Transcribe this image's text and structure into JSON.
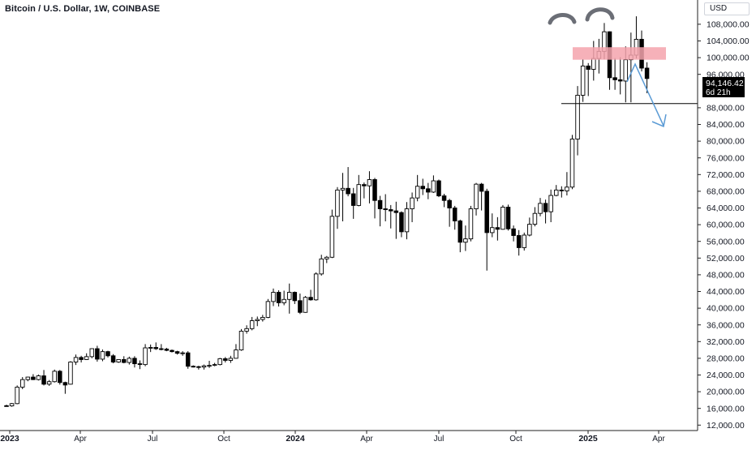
{
  "header": {
    "symbol_title": "Bitcoin / U.S. Dollar, 1W, COINBASE",
    "currency_label": "USD"
  },
  "price_badge": {
    "price": "94,146.42",
    "countdown": "6d 21h"
  },
  "colors": {
    "bull_fill": "#ffffff",
    "bear_fill": "#000000",
    "candle_outline": "#000000",
    "resistance_zone": "#f5a3ad",
    "projection_arrow": "#5b9bd5",
    "head_shoulders_mark": "#6b6e76",
    "support_line": "#000000",
    "axis_text": "#131722"
  },
  "chart_data": {
    "type": "candlestick",
    "title": "Bitcoin / U.S. Dollar, 1W, COINBASE",
    "y_axis": {
      "position": "right",
      "ticks": [
        "108,000.00",
        "104,000.00",
        "100,000.00",
        "96,000.00",
        "88,000.00",
        "84,000.00",
        "80,000.00",
        "76,000.00",
        "72,000.00",
        "68,000.00",
        "64,000.00",
        "60,000.00",
        "56,000.00",
        "52,000.00",
        "48,000.00",
        "44,000.00",
        "40,000.00",
        "36,000.00",
        "32,000.00",
        "28,000.00",
        "24,000.00",
        "20,000.00",
        "16,000.00",
        "12,000.00"
      ],
      "ylim": [
        11000,
        111000
      ],
      "scale": "linear"
    },
    "x_axis": {
      "ticks": [
        "2023",
        "Apr",
        "Jul",
        "Oct",
        "2024",
        "Apr",
        "Jul",
        "Oct",
        "2025",
        "Apr"
      ],
      "bold_ticks": [
        "2023",
        "2024",
        "2025"
      ]
    },
    "grid": false,
    "annotations": [
      "head-and-shoulders caps over peaks",
      "resistance zone ~99,500-102,500",
      "neckline support ~89,000",
      "projected downward path"
    ],
    "candles_ohlc": [
      [
        16650,
        16900,
        16500,
        16600
      ],
      [
        16600,
        17300,
        16400,
        17150
      ],
      [
        17150,
        21500,
        17000,
        21100
      ],
      [
        21100,
        23500,
        20600,
        22900
      ],
      [
        22900,
        23600,
        22500,
        23500
      ],
      [
        23500,
        24200,
        22800,
        22900
      ],
      [
        22900,
        24100,
        22700,
        23800
      ],
      [
        23800,
        25200,
        21500,
        21800
      ],
      [
        21800,
        22800,
        21400,
        22400
      ],
      [
        22400,
        25300,
        22200,
        24900
      ],
      [
        24900,
        25200,
        21700,
        22200
      ],
      [
        22200,
        22400,
        19500,
        21600
      ],
      [
        21800,
        27300,
        21700,
        27100
      ],
      [
        27100,
        28900,
        26400,
        28200
      ],
      [
        28200,
        28600,
        27000,
        27700
      ],
      [
        27700,
        29200,
        27600,
        28400
      ],
      [
        28400,
        30400,
        28000,
        30300
      ],
      [
        30300,
        31000,
        27200,
        27800
      ],
      [
        27800,
        30100,
        27300,
        29600
      ],
      [
        29600,
        29800,
        28200,
        28600
      ],
      [
        28600,
        29000,
        26800,
        27100
      ],
      [
        27100,
        27800,
        26900,
        27700
      ],
      [
        27700,
        28500,
        26800,
        27000
      ],
      [
        27000,
        28400,
        26500,
        28000
      ],
      [
        28000,
        28500,
        25800,
        26700
      ],
      [
        26700,
        27500,
        25400,
        26500
      ],
      [
        26500,
        31400,
        26100,
        30500
      ],
      [
        30500,
        31300,
        29500,
        30600
      ],
      [
        30600,
        31800,
        30000,
        30300
      ],
      [
        30300,
        31400,
        29900,
        30200
      ],
      [
        30200,
        30500,
        29700,
        29900
      ],
      [
        29900,
        30100,
        29400,
        29600
      ],
      [
        29600,
        29800,
        28900,
        29200
      ],
      [
        29200,
        29700,
        28600,
        29300
      ],
      [
        29300,
        29700,
        25500,
        26100
      ],
      [
        26100,
        26300,
        25800,
        26000
      ],
      [
        26000,
        26200,
        25300,
        25900
      ],
      [
        25900,
        26500,
        25300,
        26200
      ],
      [
        26200,
        27400,
        25700,
        26300
      ],
      [
        26300,
        26900,
        26100,
        26500
      ],
      [
        26500,
        28100,
        26300,
        27900
      ],
      [
        27900,
        28300,
        27000,
        27500
      ],
      [
        27500,
        28600,
        26900,
        28000
      ],
      [
        28000,
        31400,
        27900,
        30000
      ],
      [
        30000,
        35000,
        29800,
        34500
      ],
      [
        34500,
        35900,
        33900,
        35100
      ],
      [
        35100,
        37900,
        34700,
        37000
      ],
      [
        37000,
        38000,
        35700,
        37300
      ],
      [
        37300,
        38400,
        36800,
        37800
      ],
      [
        37800,
        42200,
        37600,
        41600
      ],
      [
        41600,
        44700,
        40500,
        43800
      ],
      [
        43800,
        44300,
        40400,
        41300
      ],
      [
        41300,
        44200,
        40700,
        42100
      ],
      [
        42100,
        45900,
        38700,
        43800
      ],
      [
        43800,
        44000,
        41000,
        41800
      ],
      [
        41800,
        43500,
        38600,
        39000
      ],
      [
        39000,
        42900,
        38900,
        42600
      ],
      [
        42600,
        44400,
        41800,
        42000
      ],
      [
        42000,
        48600,
        41800,
        48200
      ],
      [
        48200,
        52800,
        47800,
        51800
      ],
      [
        51800,
        52500,
        50800,
        52200
      ],
      [
        52200,
        63600,
        52000,
        62000
      ],
      [
        62000,
        69000,
        59000,
        68300
      ],
      [
        68300,
        72400,
        60800,
        68700
      ],
      [
        68700,
        73800,
        66800,
        67400
      ],
      [
        67400,
        68800,
        61400,
        64600
      ],
      [
        64600,
        71900,
        64400,
        69600
      ],
      [
        69600,
        70100,
        66300,
        69300
      ],
      [
        69300,
        72800,
        65100,
        70800
      ],
      [
        70800,
        71200,
        61500,
        65800
      ],
      [
        65800,
        66900,
        59600,
        63800
      ],
      [
        63800,
        67300,
        60800,
        63600
      ],
      [
        63600,
        64700,
        59100,
        63300
      ],
      [
        63300,
        65500,
        56600,
        62900
      ],
      [
        62900,
        63200,
        57000,
        58300
      ],
      [
        58300,
        65400,
        56500,
        63800
      ],
      [
        63800,
        67700,
        60600,
        66400
      ],
      [
        66400,
        71900,
        65600,
        69200
      ],
      [
        69200,
        71000,
        67100,
        68600
      ],
      [
        68600,
        70000,
        66100,
        67800
      ],
      [
        67800,
        71800,
        67600,
        70500
      ],
      [
        70500,
        70800,
        66600,
        66900
      ],
      [
        66900,
        67400,
        64200,
        65800
      ],
      [
        65800,
        66200,
        59500,
        64000
      ],
      [
        64000,
        64500,
        58800,
        60900
      ],
      [
        60900,
        61200,
        53400,
        55800
      ],
      [
        55800,
        59800,
        53700,
        56600
      ],
      [
        56600,
        64500,
        56000,
        63800
      ],
      [
        63800,
        70000,
        62200,
        69700
      ],
      [
        69700,
        70000,
        63400,
        68000
      ],
      [
        68000,
        68600,
        49000,
        58100
      ],
      [
        58100,
        62700,
        57000,
        59300
      ],
      [
        59300,
        61800,
        56200,
        58900
      ],
      [
        58900,
        64700,
        58800,
        64200
      ],
      [
        64200,
        64800,
        58600,
        59000
      ],
      [
        59000,
        59800,
        56000,
        57400
      ],
      [
        57400,
        58700,
        52600,
        54500
      ],
      [
        54500,
        58100,
        53800,
        57500
      ],
      [
        57500,
        61700,
        57200,
        60100
      ],
      [
        60100,
        64200,
        59600,
        62700
      ],
      [
        62700,
        66400,
        62000,
        65100
      ],
      [
        65100,
        66000,
        60300,
        63100
      ],
      [
        63100,
        68400,
        60600,
        67000
      ],
      [
        67000,
        69500,
        66800,
        68300
      ],
      [
        68300,
        69200,
        66500,
        68100
      ],
      [
        68100,
        72600,
        67000,
        69000
      ],
      [
        69000,
        81500,
        68500,
        80500
      ],
      [
        80500,
        93200,
        76600,
        91000
      ],
      [
        91000,
        99600,
        89400,
        98000
      ],
      [
        98000,
        98700,
        90800,
        97200
      ],
      [
        97200,
        104000,
        94500,
        99800
      ],
      [
        99800,
        104500,
        96200,
        101500
      ],
      [
        101500,
        108300,
        99600,
        106200
      ],
      [
        106200,
        106300,
        92300,
        95200
      ],
      [
        95200,
        99900,
        92300,
        94700
      ],
      [
        94700,
        100100,
        91200,
        94400
      ],
      [
        94400,
        102700,
        89300,
        99500
      ],
      [
        99500,
        106000,
        89300,
        100600
      ],
      [
        100600,
        109900,
        99800,
        104400
      ],
      [
        104400,
        106500,
        96700,
        97500
      ],
      [
        97500,
        98900,
        91500,
        95000
      ]
    ]
  }
}
